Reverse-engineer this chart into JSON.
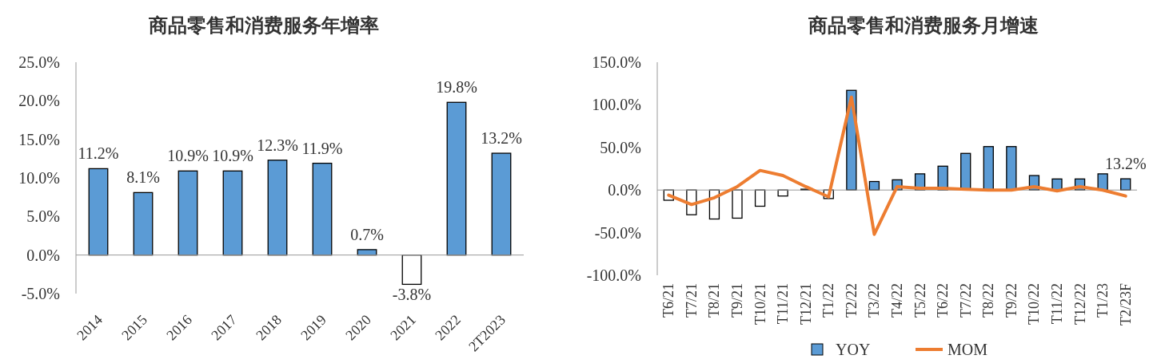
{
  "chart_data": [
    {
      "type": "bar",
      "title": "商品零售和消费服务年增率",
      "categories": [
        "2014",
        "2015",
        "2016",
        "2017",
        "2018",
        "2019",
        "2020",
        "2021",
        "2022",
        "2T2023"
      ],
      "values": [
        11.2,
        8.1,
        10.9,
        10.9,
        12.3,
        11.9,
        0.7,
        -3.8,
        19.8,
        13.2
      ],
      "colors": [
        "#5b9bd5",
        "#5b9bd5",
        "#5b9bd5",
        "#5b9bd5",
        "#5b9bd5",
        "#5b9bd5",
        "#5b9bd5",
        "#ffffff",
        "#5b9bd5",
        "#5b9bd5"
      ],
      "value_labels": [
        "11.2%",
        "8.1%",
        "10.9%",
        "10.9%",
        "12.3%",
        "11.9%",
        "0.7%",
        "-3.8%",
        "19.8%",
        "13.2%"
      ],
      "ylim": [
        -5,
        25
      ],
      "yticks": [
        {
          "value": -5,
          "label": "-5.0%"
        },
        {
          "value": 0,
          "label": "0.0%"
        },
        {
          "value": 5,
          "label": "5.0%"
        },
        {
          "value": 10,
          "label": "10.0%"
        },
        {
          "value": 15,
          "label": "15.0%"
        },
        {
          "value": 20,
          "label": "20.0%"
        },
        {
          "value": 25,
          "label": "25.0%"
        }
      ],
      "legend": false
    },
    {
      "type": "bar",
      "title": "商品零售和消费服务月增速",
      "categories": [
        "T6/21",
        "T7/21",
        "T8/21",
        "T9/21",
        "T10/21",
        "T11/21",
        "T12/21",
        "T1/22",
        "T2/22",
        "T3/22",
        "T4/22",
        "T5/22",
        "T6/22",
        "T7/22",
        "T8/22",
        "T9/22",
        "T10/22",
        "T11/22",
        "T12/22",
        "T1/23",
        "T2/23F"
      ],
      "series": [
        {
          "name": "YOY",
          "color": "#5b9bd5",
          "colors": [
            "#ffffff",
            "#ffffff",
            "#ffffff",
            "#ffffff",
            "#ffffff",
            "#ffffff",
            "#5b9bd5",
            "#ffffff",
            "#5b9bd5",
            "#5b9bd5",
            "#5b9bd5",
            "#5b9bd5",
            "#5b9bd5",
            "#5b9bd5",
            "#5b9bd5",
            "#5b9bd5",
            "#5b9bd5",
            "#5b9bd5",
            "#5b9bd5",
            "#5b9bd5",
            "#5b9bd5"
          ],
          "values": [
            -12,
            -29,
            -34,
            -33,
            -19,
            -7,
            1,
            -10,
            117,
            10,
            12,
            19,
            28,
            43,
            51,
            51,
            17,
            13,
            13,
            19,
            13.2
          ],
          "value_labels": [
            null,
            null,
            null,
            null,
            null,
            null,
            null,
            null,
            null,
            null,
            null,
            null,
            null,
            null,
            null,
            null,
            null,
            null,
            null,
            null,
            "13.2%"
          ]
        },
        {
          "name": "MOM",
          "type": "line",
          "color": "#ed7d31",
          "values": [
            -6,
            -17,
            -9,
            4,
            23,
            17,
            4,
            -8,
            109,
            -52,
            4,
            2,
            2,
            1,
            0,
            0,
            4,
            -1,
            4,
            0,
            -7
          ]
        }
      ],
      "ylim": [
        -100,
        150
      ],
      "yticks": [
        {
          "value": -100,
          "label": "-100.0%"
        },
        {
          "value": -50,
          "label": "-50.0%"
        },
        {
          "value": 0,
          "label": "0.0%"
        },
        {
          "value": 50,
          "label": "50.0%"
        },
        {
          "value": 100,
          "label": "100.0%"
        },
        {
          "value": 150,
          "label": "150.0%"
        }
      ],
      "legend": "bottom"
    }
  ]
}
